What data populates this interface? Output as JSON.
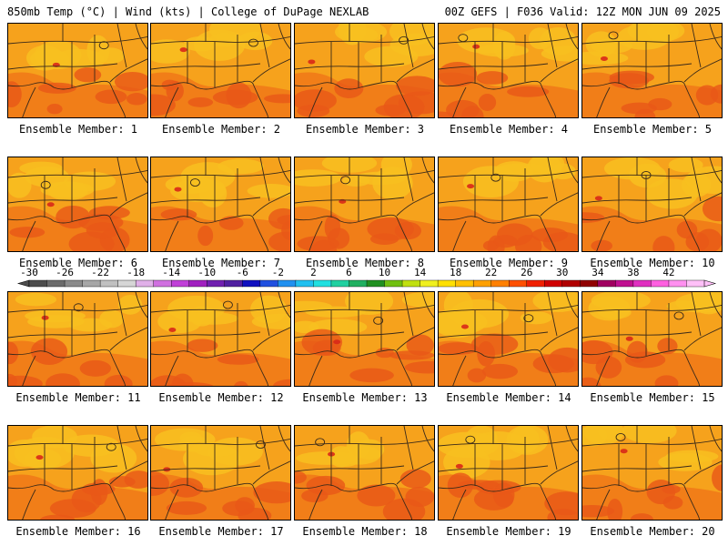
{
  "header": {
    "left_title": "850mb Temp (°C) | Wind (kts) | College of DuPage NEXLAB",
    "right_title": "00Z GEFS | F036 Valid: 12Z MON JUN 09 2025"
  },
  "members": [
    {
      "label": "Ensemble Member: 1"
    },
    {
      "label": "Ensemble Member: 2"
    },
    {
      "label": "Ensemble Member: 3"
    },
    {
      "label": "Ensemble Member: 4"
    },
    {
      "label": "Ensemble Member: 5"
    },
    {
      "label": "Ensemble Member: 6"
    },
    {
      "label": "Ensemble Member: 7"
    },
    {
      "label": "Ensemble Member: 8"
    },
    {
      "label": "Ensemble Member: 9"
    },
    {
      "label": "Ensemble Member: 10"
    },
    {
      "label": "Ensemble Member: 11"
    },
    {
      "label": "Ensemble Member: 12"
    },
    {
      "label": "Ensemble Member: 13"
    },
    {
      "label": "Ensemble Member: 14"
    },
    {
      "label": "Ensemble Member: 15"
    },
    {
      "label": "Ensemble Member: 16"
    },
    {
      "label": "Ensemble Member: 17"
    },
    {
      "label": "Ensemble Member: 18"
    },
    {
      "label": "Ensemble Member: 19"
    },
    {
      "label": "Ensemble Member: 20"
    }
  ],
  "colorbar": {
    "ticks": [
      "-30",
      "-26",
      "-22",
      "-18",
      "-14",
      "-10",
      "-6",
      "-2",
      "2",
      "6",
      "10",
      "14",
      "18",
      "22",
      "26",
      "30",
      "34",
      "38",
      "42"
    ],
    "colors": [
      "#4d4d4d",
      "#6b6b6b",
      "#8a8a8a",
      "#a6a6a6",
      "#c0c0c0",
      "#d6d6d6",
      "#e0b0e8",
      "#d070e0",
      "#c040d8",
      "#a020c0",
      "#7020b0",
      "#5020a0",
      "#1010c0",
      "#2050e0",
      "#2090f0",
      "#20c0f0",
      "#20e0e0",
      "#20d0a0",
      "#20b060",
      "#209020",
      "#70c010",
      "#c0e010",
      "#f0f020",
      "#ffe000",
      "#ffc000",
      "#ffa000",
      "#ff8000",
      "#ff5000",
      "#f02000",
      "#d00000",
      "#b00000",
      "#900000",
      "#a00060",
      "#c01090",
      "#e030c0",
      "#ff60e0",
      "#ff90f0",
      "#ffc0f8"
    ]
  },
  "palette": {
    "warm_base": "#f6a21c",
    "cool_patch": "#f8c020",
    "hot_patch": "#f07818",
    "hotter_patch": "#e85818",
    "peak": "#d82818"
  }
}
